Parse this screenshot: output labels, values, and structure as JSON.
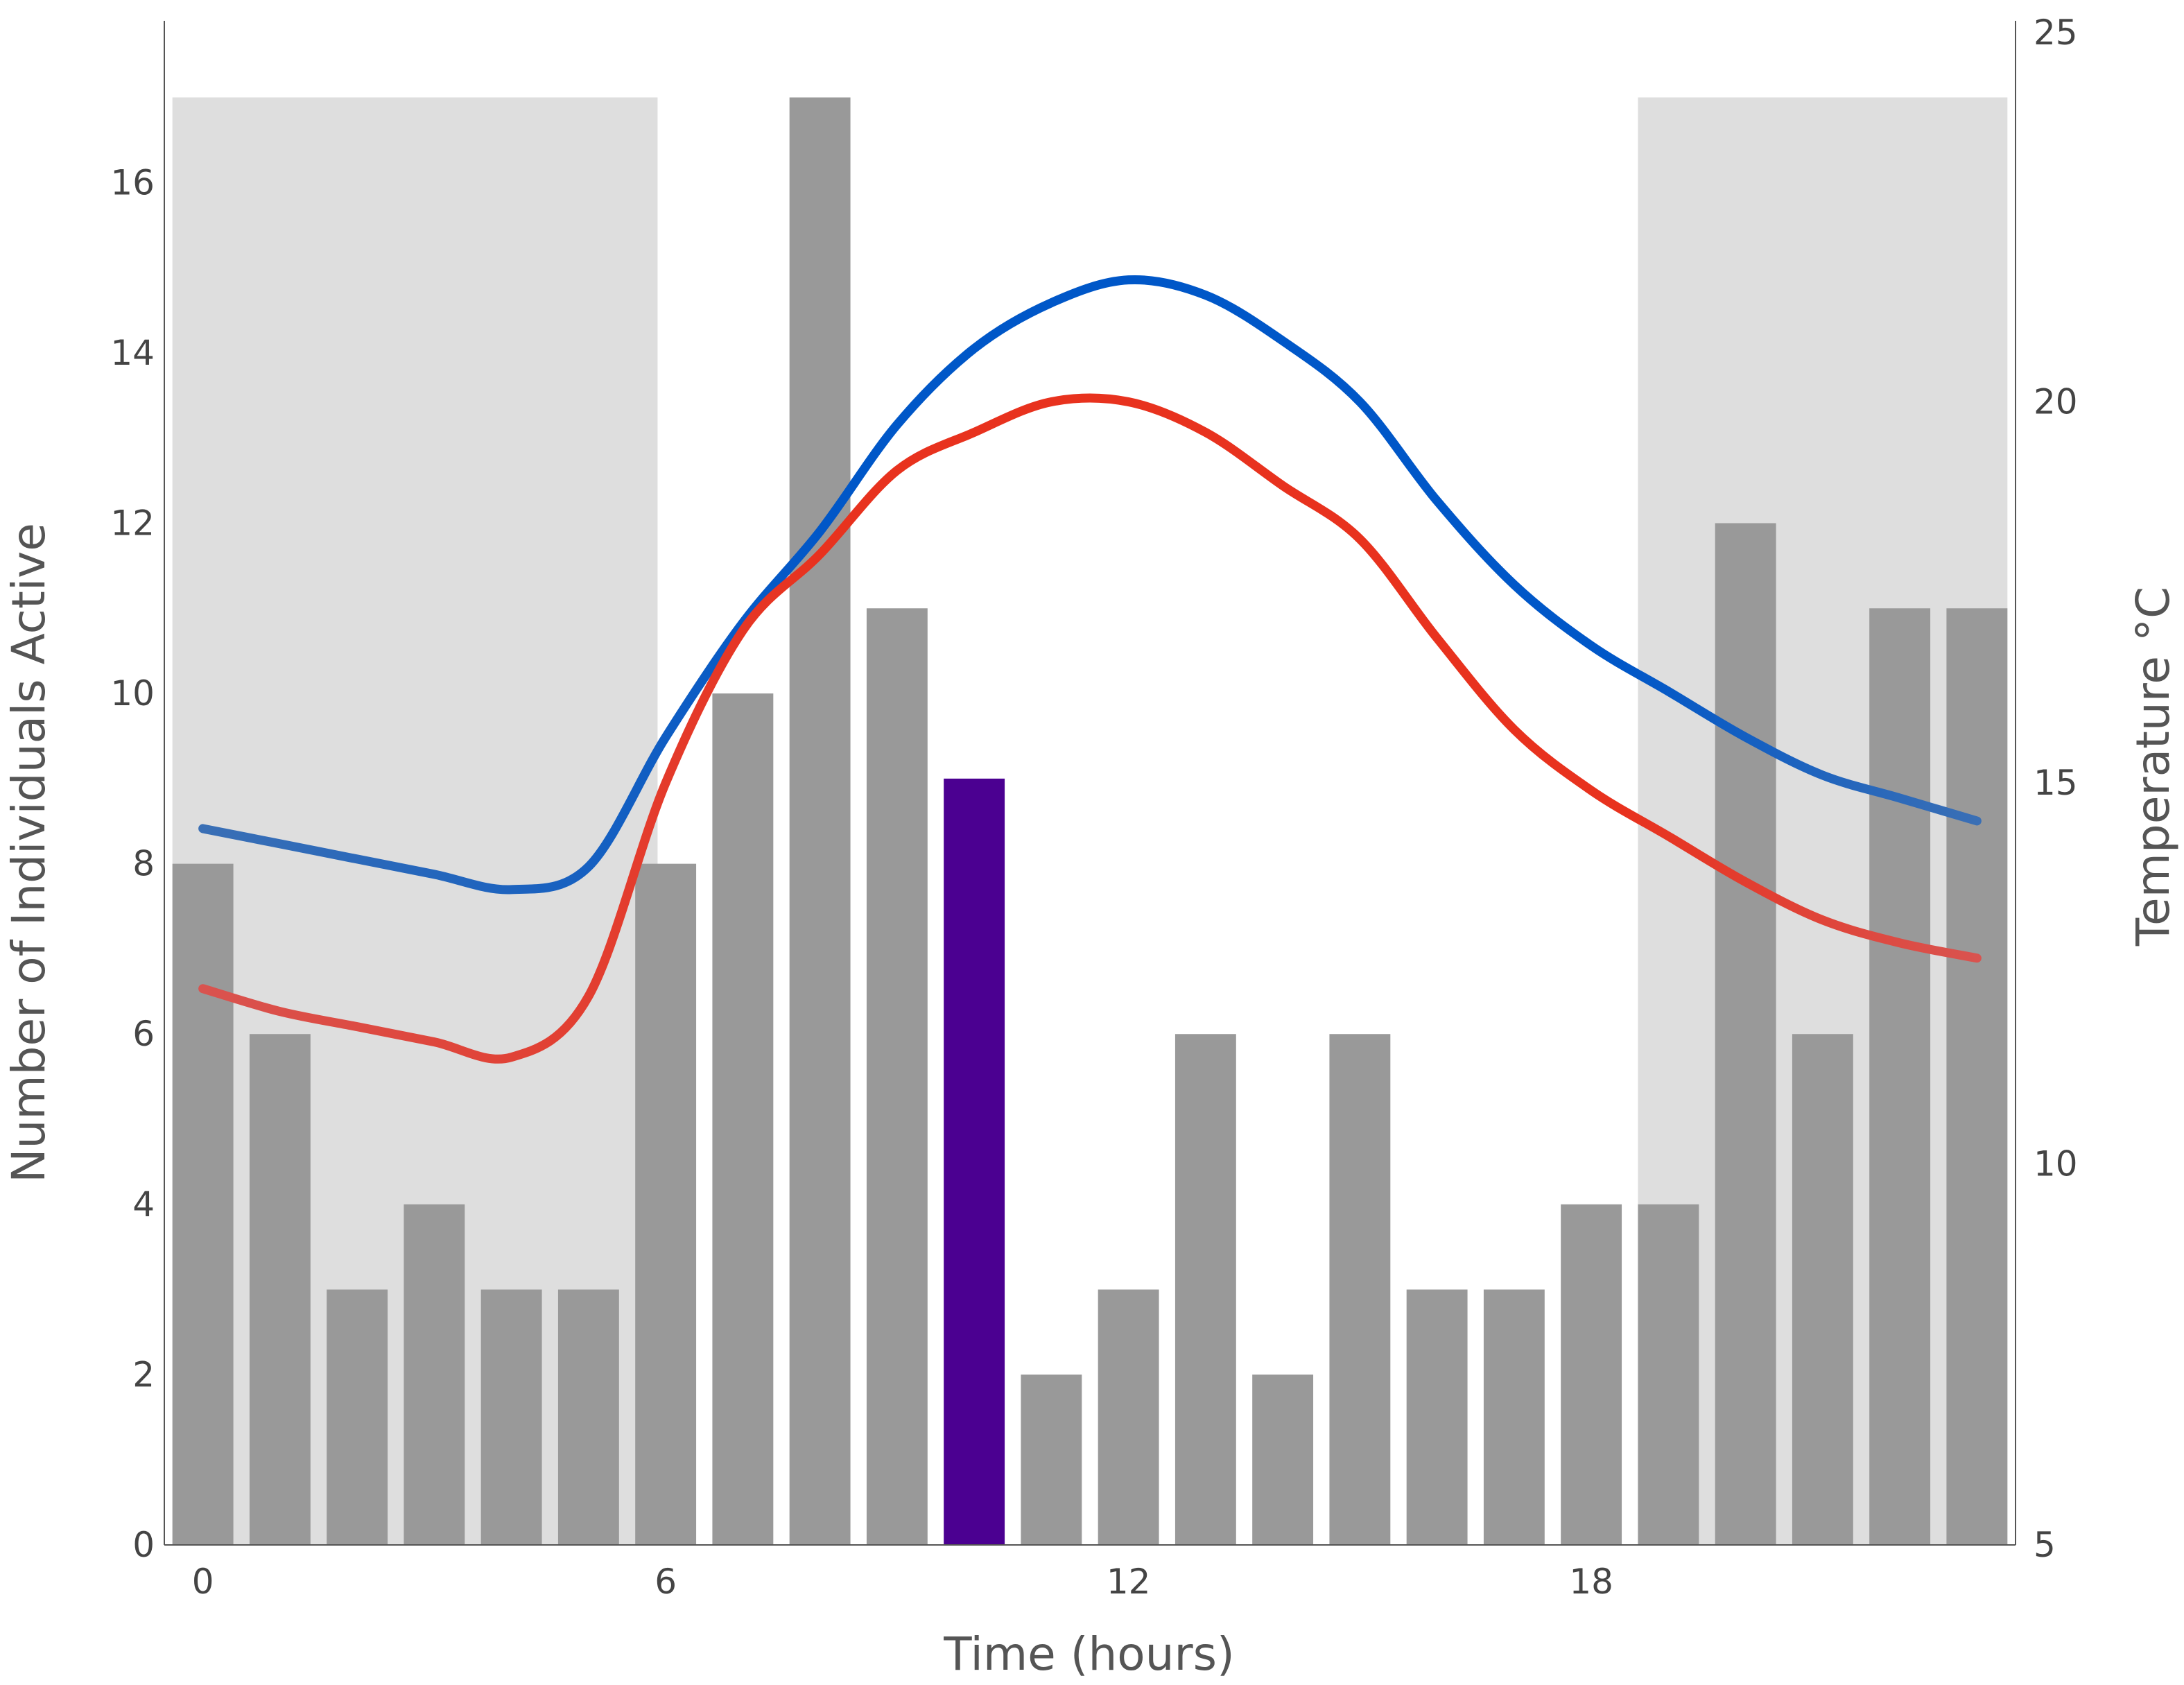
{
  "chart_data": {
    "type": "bar",
    "xlabel": "Time (hours)",
    "ylabel": "Number of Individuals Active",
    "y2label": "Temperature °C",
    "x_ticks": [
      "0",
      "6",
      "12",
      "18"
    ],
    "y_ticks": [
      "0",
      "2",
      "4",
      "6",
      "8",
      "10",
      "12",
      "14",
      "16"
    ],
    "y2_ticks": [
      "5",
      "10",
      "15",
      "20",
      "25"
    ],
    "xlim": [
      -0.5,
      23.5
    ],
    "ylim": [
      0,
      17.9
    ],
    "y2lim": [
      5,
      25
    ],
    "grid": false,
    "legend": "none",
    "shaded_regions": [
      {
        "x_start": 0,
        "x_end": 5.5,
        "y_top": 17
      },
      {
        "x_start": 19,
        "x_end": 23,
        "y_top": 17
      }
    ],
    "shade_color": "#dedede",
    "bar_color": "#999999",
    "highlight_color": "#4b0091",
    "highlight_hour": 10,
    "bars": {
      "x": [
        0,
        1,
        2,
        3,
        4,
        5,
        6,
        7,
        8,
        9,
        10,
        11,
        12,
        13,
        14,
        15,
        16,
        17,
        18,
        19,
        20,
        21,
        22,
        23
      ],
      "values": [
        8,
        6,
        3,
        4,
        3,
        3,
        8,
        10,
        17,
        11,
        9,
        2,
        3,
        6,
        2,
        6,
        3,
        3,
        4,
        4,
        12,
        6,
        11,
        11
      ]
    },
    "series": [
      {
        "color_start": "#3a6fb5",
        "color_end": "#0057c8",
        "axis": "right",
        "x": [
          0,
          1,
          2,
          3,
          4,
          5,
          6,
          7,
          8,
          9,
          10,
          11,
          12,
          13,
          14,
          15,
          16,
          17,
          18,
          19,
          20,
          21,
          22,
          23
        ],
        "values": [
          14.4,
          14.2,
          14.0,
          13.8,
          13.6,
          13.9,
          15.6,
          17.1,
          18.3,
          19.7,
          20.7,
          21.3,
          21.6,
          21.4,
          20.8,
          20.0,
          18.7,
          17.6,
          16.8,
          16.2,
          15.6,
          15.1,
          14.8,
          14.5
        ]
      },
      {
        "color_start": "#d9534f",
        "color_end": "#e8321e",
        "axis": "right",
        "x": [
          0,
          1,
          2,
          3,
          4,
          5,
          6,
          7,
          8,
          9,
          10,
          11,
          12,
          13,
          14,
          15,
          16,
          17,
          18,
          19,
          20,
          21,
          22,
          23
        ],
        "values": [
          12.3,
          12.0,
          11.8,
          11.6,
          11.4,
          12.2,
          15.0,
          17.0,
          18.0,
          19.1,
          19.6,
          20.0,
          20.0,
          19.6,
          18.9,
          18.2,
          16.9,
          15.7,
          14.9,
          14.3,
          13.7,
          13.2,
          12.9,
          12.7
        ]
      }
    ]
  }
}
